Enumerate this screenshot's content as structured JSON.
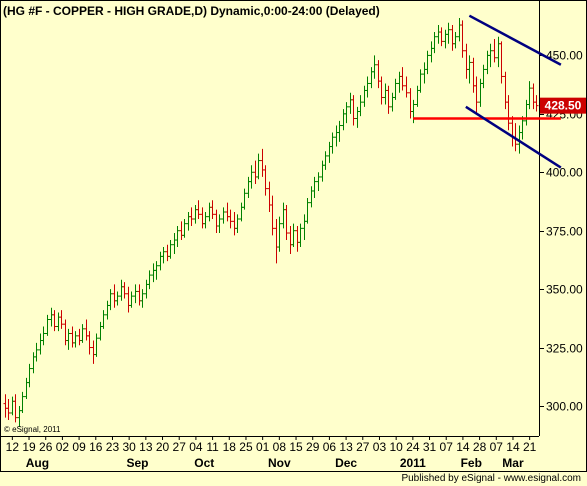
{
  "chart_data": {
    "type": "ohlc",
    "title": "(HG #F - COPPER - HIGH GRADE,D) Dynamic,0:00-24:00 (Delayed)",
    "copyright": "© eSignal, 2011",
    "ylim": [
      288,
      472
    ],
    "y_ticks": [
      "450.00",
      "425.00",
      "400.00",
      "375.00",
      "350.00",
      "325.00",
      "300.00"
    ],
    "y_tick_values": [
      450,
      425,
      400,
      375,
      350,
      325,
      300
    ],
    "last_price": "428.50",
    "last_price_value": 428.5,
    "colors": {
      "up": "#008000",
      "down": "#cc0000",
      "background": "#ffffcc",
      "support_line": "#ff0000",
      "channel_line": "#000080",
      "last_badge": "#cc0000"
    },
    "x_day_labels": [
      "12",
      "19",
      "26",
      "02",
      "09",
      "16",
      "23",
      "30",
      "13",
      "20",
      "27",
      "04",
      "11",
      "18",
      "25",
      "01",
      "08",
      "15",
      "29",
      "06",
      "13",
      "27",
      "03",
      "10",
      "24",
      "31",
      "07",
      "14",
      "28",
      "07",
      "14",
      "21"
    ],
    "x_months": [
      "Aug",
      "Sep",
      "Oct",
      "Nov",
      "Dec",
      "2011",
      "Feb",
      "Mar"
    ],
    "bars": [
      {
        "o": 301,
        "h": 305,
        "l": 295,
        "c": 299
      },
      {
        "o": 299,
        "h": 303,
        "l": 294,
        "c": 297
      },
      {
        "o": 297,
        "h": 304,
        "l": 296,
        "c": 302
      },
      {
        "o": 302,
        "h": 305,
        "l": 293,
        "c": 295
      },
      {
        "o": 295,
        "h": 300,
        "l": 291,
        "c": 298
      },
      {
        "o": 298,
        "h": 306,
        "l": 297,
        "c": 304
      },
      {
        "o": 304,
        "h": 312,
        "l": 303,
        "c": 310
      },
      {
        "o": 310,
        "h": 318,
        "l": 308,
        "c": 316
      },
      {
        "o": 316,
        "h": 323,
        "l": 314,
        "c": 321
      },
      {
        "o": 321,
        "h": 327,
        "l": 319,
        "c": 324
      },
      {
        "o": 324,
        "h": 331,
        "l": 322,
        "c": 328
      },
      {
        "o": 328,
        "h": 334,
        "l": 326,
        "c": 331
      },
      {
        "o": 331,
        "h": 339,
        "l": 330,
        "c": 337
      },
      {
        "o": 337,
        "h": 342,
        "l": 334,
        "c": 339
      },
      {
        "o": 339,
        "h": 341,
        "l": 332,
        "c": 334
      },
      {
        "o": 334,
        "h": 340,
        "l": 332,
        "c": 338
      },
      {
        "o": 338,
        "h": 341,
        "l": 333,
        "c": 335
      },
      {
        "o": 335,
        "h": 337,
        "l": 326,
        "c": 328
      },
      {
        "o": 328,
        "h": 333,
        "l": 324,
        "c": 331
      },
      {
        "o": 331,
        "h": 334,
        "l": 325,
        "c": 327
      },
      {
        "o": 327,
        "h": 332,
        "l": 325,
        "c": 330
      },
      {
        "o": 330,
        "h": 333,
        "l": 326,
        "c": 328
      },
      {
        "o": 328,
        "h": 335,
        "l": 327,
        "c": 333
      },
      {
        "o": 333,
        "h": 337,
        "l": 328,
        "c": 330
      },
      {
        "o": 330,
        "h": 332,
        "l": 322,
        "c": 325
      },
      {
        "o": 325,
        "h": 328,
        "l": 318,
        "c": 322
      },
      {
        "o": 322,
        "h": 331,
        "l": 321,
        "c": 329
      },
      {
        "o": 329,
        "h": 336,
        "l": 328,
        "c": 334
      },
      {
        "o": 334,
        "h": 341,
        "l": 333,
        "c": 339
      },
      {
        "o": 339,
        "h": 345,
        "l": 337,
        "c": 343
      },
      {
        "o": 343,
        "h": 350,
        "l": 341,
        "c": 348
      },
      {
        "o": 348,
        "h": 352,
        "l": 342,
        "c": 345
      },
      {
        "o": 345,
        "h": 349,
        "l": 343,
        "c": 347
      },
      {
        "o": 347,
        "h": 354,
        "l": 345,
        "c": 351
      },
      {
        "o": 351,
        "h": 353,
        "l": 346,
        "c": 348
      },
      {
        "o": 348,
        "h": 351,
        "l": 340,
        "c": 343
      },
      {
        "o": 343,
        "h": 349,
        "l": 342,
        "c": 347
      },
      {
        "o": 347,
        "h": 352,
        "l": 344,
        "c": 349
      },
      {
        "o": 349,
        "h": 352,
        "l": 343,
        "c": 345
      },
      {
        "o": 345,
        "h": 350,
        "l": 342,
        "c": 348
      },
      {
        "o": 348,
        "h": 354,
        "l": 346,
        "c": 352
      },
      {
        "o": 352,
        "h": 358,
        "l": 350,
        "c": 356
      },
      {
        "o": 356,
        "h": 361,
        "l": 353,
        "c": 358
      },
      {
        "o": 358,
        "h": 362,
        "l": 354,
        "c": 360
      },
      {
        "o": 360,
        "h": 366,
        "l": 358,
        "c": 364
      },
      {
        "o": 364,
        "h": 368,
        "l": 361,
        "c": 366
      },
      {
        "o": 366,
        "h": 369,
        "l": 362,
        "c": 364
      },
      {
        "o": 364,
        "h": 371,
        "l": 363,
        "c": 369
      },
      {
        "o": 369,
        "h": 374,
        "l": 365,
        "c": 371
      },
      {
        "o": 371,
        "h": 377,
        "l": 368,
        "c": 375
      },
      {
        "o": 375,
        "h": 379,
        "l": 371,
        "c": 373
      },
      {
        "o": 373,
        "h": 380,
        "l": 372,
        "c": 378
      },
      {
        "o": 378,
        "h": 383,
        "l": 375,
        "c": 381
      },
      {
        "o": 381,
        "h": 385,
        "l": 377,
        "c": 380
      },
      {
        "o": 380,
        "h": 386,
        "l": 378,
        "c": 384
      },
      {
        "o": 384,
        "h": 388,
        "l": 380,
        "c": 382
      },
      {
        "o": 382,
        "h": 385,
        "l": 376,
        "c": 378
      },
      {
        "o": 378,
        "h": 383,
        "l": 376,
        "c": 381
      },
      {
        "o": 381,
        "h": 387,
        "l": 379,
        "c": 385
      },
      {
        "o": 385,
        "h": 388,
        "l": 380,
        "c": 382
      },
      {
        "o": 382,
        "h": 384,
        "l": 374,
        "c": 377
      },
      {
        "o": 377,
        "h": 382,
        "l": 374,
        "c": 380
      },
      {
        "o": 380,
        "h": 385,
        "l": 378,
        "c": 383
      },
      {
        "o": 383,
        "h": 387,
        "l": 379,
        "c": 381
      },
      {
        "o": 381,
        "h": 384,
        "l": 376,
        "c": 379
      },
      {
        "o": 379,
        "h": 383,
        "l": 373,
        "c": 376
      },
      {
        "o": 376,
        "h": 382,
        "l": 374,
        "c": 380
      },
      {
        "o": 380,
        "h": 387,
        "l": 379,
        "c": 385
      },
      {
        "o": 385,
        "h": 393,
        "l": 384,
        "c": 391
      },
      {
        "o": 391,
        "h": 398,
        "l": 389,
        "c": 396
      },
      {
        "o": 396,
        "h": 403,
        "l": 393,
        "c": 400
      },
      {
        "o": 400,
        "h": 405,
        "l": 395,
        "c": 398
      },
      {
        "o": 398,
        "h": 408,
        "l": 397,
        "c": 405
      },
      {
        "o": 405,
        "h": 410,
        "l": 398,
        "c": 401
      },
      {
        "o": 401,
        "h": 403,
        "l": 390,
        "c": 393
      },
      {
        "o": 393,
        "h": 396,
        "l": 383,
        "c": 386
      },
      {
        "o": 386,
        "h": 390,
        "l": 373,
        "c": 376
      },
      {
        "o": 376,
        "h": 380,
        "l": 361,
        "c": 368
      },
      {
        "o": 368,
        "h": 381,
        "l": 366,
        "c": 378
      },
      {
        "o": 378,
        "h": 387,
        "l": 376,
        "c": 384
      },
      {
        "o": 384,
        "h": 386,
        "l": 371,
        "c": 374
      },
      {
        "o": 374,
        "h": 377,
        "l": 365,
        "c": 369
      },
      {
        "o": 369,
        "h": 378,
        "l": 368,
        "c": 375
      },
      {
        "o": 375,
        "h": 377,
        "l": 366,
        "c": 370
      },
      {
        "o": 370,
        "h": 378,
        "l": 368,
        "c": 376
      },
      {
        "o": 376,
        "h": 382,
        "l": 371,
        "c": 379
      },
      {
        "o": 379,
        "h": 389,
        "l": 378,
        "c": 387
      },
      {
        "o": 387,
        "h": 394,
        "l": 385,
        "c": 392
      },
      {
        "o": 392,
        "h": 398,
        "l": 389,
        "c": 396
      },
      {
        "o": 396,
        "h": 400,
        "l": 392,
        "c": 398
      },
      {
        "o": 398,
        "h": 405,
        "l": 396,
        "c": 403
      },
      {
        "o": 403,
        "h": 409,
        "l": 401,
        "c": 407
      },
      {
        "o": 407,
        "h": 413,
        "l": 404,
        "c": 411
      },
      {
        "o": 411,
        "h": 417,
        "l": 408,
        "c": 415
      },
      {
        "o": 415,
        "h": 420,
        "l": 411,
        "c": 417
      },
      {
        "o": 417,
        "h": 422,
        "l": 413,
        "c": 420
      },
      {
        "o": 420,
        "h": 427,
        "l": 418,
        "c": 425
      },
      {
        "o": 425,
        "h": 430,
        "l": 421,
        "c": 428
      },
      {
        "o": 428,
        "h": 434,
        "l": 425,
        "c": 431
      },
      {
        "o": 431,
        "h": 433,
        "l": 420,
        "c": 423
      },
      {
        "o": 423,
        "h": 428,
        "l": 419,
        "c": 426
      },
      {
        "o": 426,
        "h": 433,
        "l": 424,
        "c": 430
      },
      {
        "o": 430,
        "h": 437,
        "l": 428,
        "c": 435
      },
      {
        "o": 435,
        "h": 441,
        "l": 432,
        "c": 438
      },
      {
        "o": 438,
        "h": 445,
        "l": 436,
        "c": 443
      },
      {
        "o": 443,
        "h": 450,
        "l": 440,
        "c": 446
      },
      {
        "o": 446,
        "h": 448,
        "l": 436,
        "c": 439
      },
      {
        "o": 439,
        "h": 441,
        "l": 429,
        "c": 432
      },
      {
        "o": 432,
        "h": 438,
        "l": 429,
        "c": 435
      },
      {
        "o": 435,
        "h": 437,
        "l": 425,
        "c": 428
      },
      {
        "o": 428,
        "h": 434,
        "l": 426,
        "c": 432
      },
      {
        "o": 432,
        "h": 440,
        "l": 431,
        "c": 438
      },
      {
        "o": 438,
        "h": 443,
        "l": 434,
        "c": 441
      },
      {
        "o": 441,
        "h": 445,
        "l": 435,
        "c": 437
      },
      {
        "o": 437,
        "h": 441,
        "l": 432,
        "c": 434
      },
      {
        "o": 434,
        "h": 436,
        "l": 423,
        "c": 426
      },
      {
        "o": 426,
        "h": 431,
        "l": 421,
        "c": 429
      },
      {
        "o": 429,
        "h": 437,
        "l": 428,
        "c": 435
      },
      {
        "o": 435,
        "h": 444,
        "l": 434,
        "c": 442
      },
      {
        "o": 442,
        "h": 447,
        "l": 438,
        "c": 444
      },
      {
        "o": 444,
        "h": 452,
        "l": 442,
        "c": 450
      },
      {
        "o": 450,
        "h": 456,
        "l": 447,
        "c": 453
      },
      {
        "o": 453,
        "h": 460,
        "l": 451,
        "c": 458
      },
      {
        "o": 458,
        "h": 463,
        "l": 455,
        "c": 460
      },
      {
        "o": 460,
        "h": 462,
        "l": 454,
        "c": 456
      },
      {
        "o": 456,
        "h": 461,
        "l": 453,
        "c": 459
      },
      {
        "o": 459,
        "h": 464,
        "l": 455,
        "c": 461
      },
      {
        "o": 461,
        "h": 463,
        "l": 452,
        "c": 455
      },
      {
        "o": 455,
        "h": 460,
        "l": 453,
        "c": 458
      },
      {
        "o": 458,
        "h": 466,
        "l": 456,
        "c": 463
      },
      {
        "o": 463,
        "h": 465,
        "l": 449,
        "c": 452
      },
      {
        "o": 452,
        "h": 455,
        "l": 440,
        "c": 444
      },
      {
        "o": 444,
        "h": 450,
        "l": 438,
        "c": 447
      },
      {
        "o": 447,
        "h": 449,
        "l": 434,
        "c": 437
      },
      {
        "o": 437,
        "h": 441,
        "l": 425,
        "c": 430
      },
      {
        "o": 430,
        "h": 440,
        "l": 428,
        "c": 438
      },
      {
        "o": 438,
        "h": 446,
        "l": 436,
        "c": 444
      },
      {
        "o": 444,
        "h": 452,
        "l": 442,
        "c": 450
      },
      {
        "o": 450,
        "h": 455,
        "l": 445,
        "c": 452
      },
      {
        "o": 452,
        "h": 457,
        "l": 447,
        "c": 449
      },
      {
        "o": 449,
        "h": 458,
        "l": 445,
        "c": 455
      },
      {
        "o": 455,
        "h": 456,
        "l": 438,
        "c": 441
      },
      {
        "o": 441,
        "h": 443,
        "l": 427,
        "c": 430
      },
      {
        "o": 430,
        "h": 433,
        "l": 418,
        "c": 421
      },
      {
        "o": 421,
        "h": 424,
        "l": 411,
        "c": 415
      },
      {
        "o": 415,
        "h": 421,
        "l": 409,
        "c": 412
      },
      {
        "o": 412,
        "h": 420,
        "l": 408,
        "c": 417
      },
      {
        "o": 417,
        "h": 424,
        "l": 414,
        "c": 422
      },
      {
        "o": 422,
        "h": 431,
        "l": 420,
        "c": 429
      },
      {
        "o": 429,
        "h": 439,
        "l": 427,
        "c": 436
      },
      {
        "o": 436,
        "h": 438,
        "l": 427,
        "c": 430
      },
      {
        "o": 430,
        "h": 433,
        "l": 426,
        "c": 428.5
      }
    ],
    "lines": [
      {
        "name": "support",
        "p1": [
          116,
          423
        ],
        "p2": [
          158,
          423
        ]
      },
      {
        "name": "upper-channel",
        "p1": [
          132,
          467
        ],
        "p2": [
          158,
          446
        ]
      },
      {
        "name": "lower-channel",
        "p1": [
          131,
          428
        ],
        "p2": [
          158,
          402
        ]
      }
    ]
  },
  "footer": {
    "text": "Published by eSignal - www.esignal.com"
  }
}
